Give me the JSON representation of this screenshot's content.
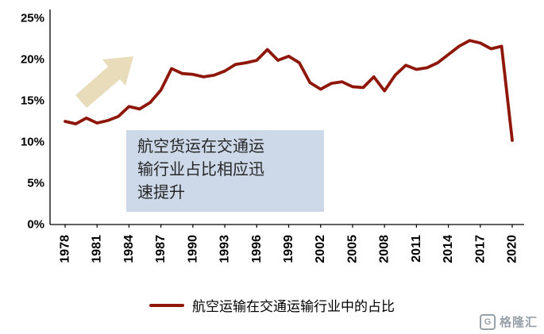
{
  "colors": {
    "line": "#8E1709",
    "arrow": "#E8DCBB",
    "annotation_bg": "#CDD9E9",
    "axis": "#000000",
    "watermark": "#99A1A8"
  },
  "annotation": {
    "lines": [
      "航空货运在交通运",
      "输行业占比相应迅",
      "速提升"
    ]
  },
  "legend": {
    "label": "航空运输在交通运输行业中的占比"
  },
  "watermark": {
    "icon_letter": "G",
    "text": "格隆汇"
  },
  "chart_data": {
    "type": "line",
    "title": "",
    "x": [
      1978,
      1979,
      1980,
      1981,
      1982,
      1983,
      1984,
      1985,
      1986,
      1987,
      1988,
      1989,
      1990,
      1991,
      1992,
      1993,
      1994,
      1995,
      1996,
      1997,
      1998,
      1999,
      2000,
      2001,
      2002,
      2003,
      2004,
      2005,
      2006,
      2007,
      2008,
      2009,
      2010,
      2011,
      2012,
      2013,
      2014,
      2015,
      2016,
      2017,
      2018,
      2019,
      2020
    ],
    "series": [
      {
        "name": "航空运输在交通运输行业中的占比",
        "values": [
          12.5,
          12.2,
          12.9,
          12.3,
          12.6,
          13.1,
          14.3,
          14.0,
          14.8,
          16.3,
          18.9,
          18.3,
          18.2,
          17.9,
          18.1,
          18.6,
          19.4,
          19.6,
          19.9,
          21.2,
          19.9,
          20.4,
          19.6,
          17.2,
          16.4,
          17.1,
          17.3,
          16.7,
          16.6,
          17.9,
          16.2,
          18.1,
          19.3,
          18.8,
          19.0,
          19.6,
          20.6,
          21.6,
          22.3,
          22.0,
          21.3,
          21.6,
          10.2
        ]
      }
    ],
    "xticks": [
      1978,
      1981,
      1984,
      1987,
      1990,
      1993,
      1996,
      1999,
      2002,
      2005,
      2008,
      2011,
      2014,
      2017,
      2020
    ],
    "yticks": [
      {
        "value": 0,
        "label": "0%"
      },
      {
        "value": 5,
        "label": "5%"
      },
      {
        "value": 10,
        "label": "10%"
      },
      {
        "value": 15,
        "label": "15%"
      },
      {
        "value": 20,
        "label": "20%"
      },
      {
        "value": 25,
        "label": "25%"
      }
    ],
    "ylim": [
      0,
      25
    ],
    "grid": false,
    "legend_position": "bottom",
    "annotations": [
      "航空货运在交通运输行业占比相应迅速提升"
    ]
  }
}
